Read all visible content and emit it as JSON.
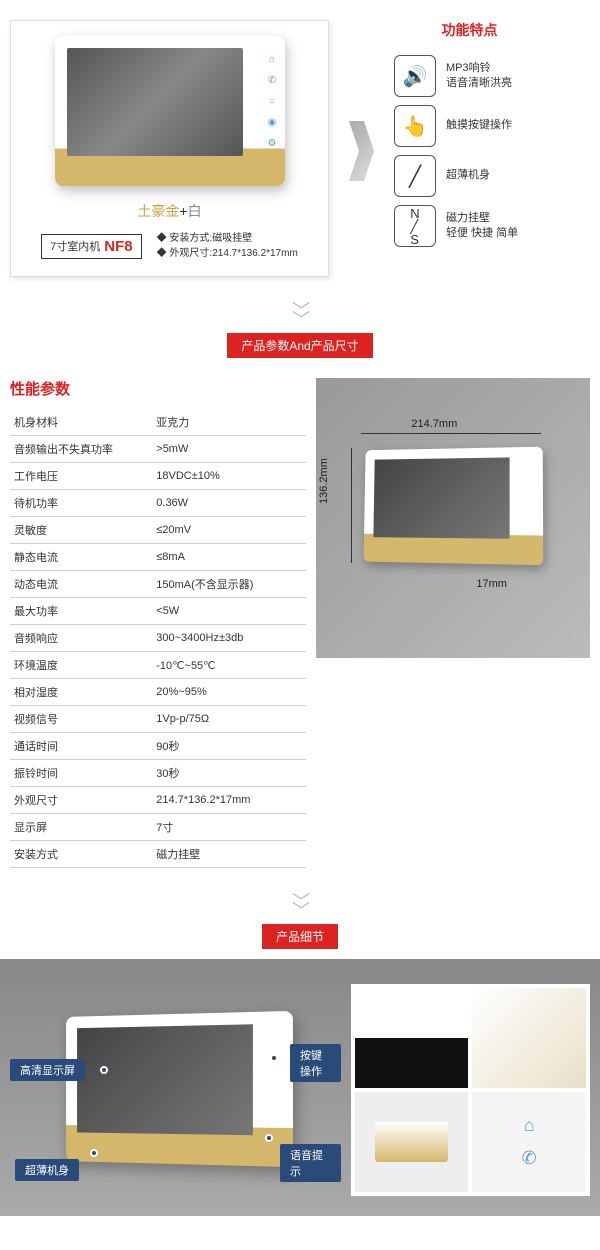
{
  "section1": {
    "features_title": "功能特点",
    "color_gold": "土豪金",
    "color_plus": "+",
    "color_white": "白",
    "model_prefix": "7寸室内机",
    "model_code": "NF8",
    "install_line": "◆ 安装方式:磁吸挂壁",
    "dim_line": "◆ 外观尺寸:214.7*136.2*17mm",
    "features": [
      {
        "icon": "🔊",
        "line1": "MP3响铃",
        "line2": "语音清晰洪亮"
      },
      {
        "icon": "👆",
        "line1": "触摸按键操作",
        "line2": ""
      },
      {
        "icon": "╱",
        "line1": "超薄机身",
        "line2": ""
      },
      {
        "icon": "N/S",
        "line1": "磁力挂壁",
        "line2": "轻便 快捷 简单"
      }
    ]
  },
  "divider_specs": "产品参数And产品尺寸",
  "divider_detail": "产品细节",
  "specs": {
    "heading": "性能参数",
    "rows": [
      [
        "机身材料",
        "亚克力"
      ],
      [
        "音频输出不失真功率",
        ">5mW"
      ],
      [
        "工作电压",
        "18VDC±10%"
      ],
      [
        "待机功率",
        "0.36W"
      ],
      [
        "灵敏度",
        "≤20mV"
      ],
      [
        "静态电流",
        "≤8mA"
      ],
      [
        "动态电流",
        "150mA(不含显示器)"
      ],
      [
        "最大功率",
        "<5W"
      ],
      [
        "音频响应",
        "300~3400Hz±3db"
      ],
      [
        "环境温度",
        "-10℃~55℃"
      ],
      [
        "相对湿度",
        "20%~95%"
      ],
      [
        "视频信号",
        "1Vp-p/75Ω"
      ],
      [
        "通话时间",
        "90秒"
      ],
      [
        "振铃时间",
        "30秒"
      ],
      [
        "外观尺寸",
        "214.7*136.2*17mm"
      ],
      [
        "显示屏",
        "7寸"
      ],
      [
        "安装方式",
        "磁力挂壁"
      ]
    ]
  },
  "dims": {
    "w": "214.7mm",
    "h": "136.2mm",
    "d": "17mm"
  },
  "callouts": {
    "c1": "高清显示屏",
    "c2": "超薄机身",
    "c3": "按键操作",
    "c4": "语音提示"
  },
  "colors": {
    "accent": "#d22",
    "gold": "#c4a24a",
    "callout_bg": "#2a4a7a"
  }
}
